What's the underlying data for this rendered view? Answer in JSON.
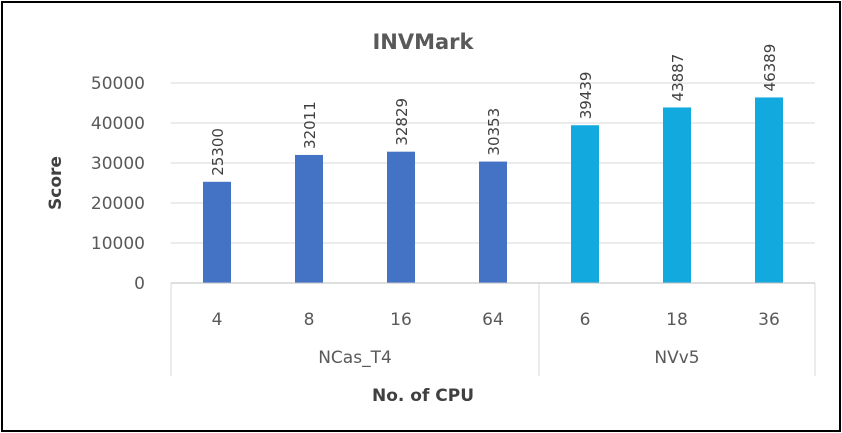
{
  "chart_data": {
    "type": "bar",
    "title": "INVMark",
    "xlabel": "No. of CPU",
    "ylabel": "Score",
    "ylim": [
      0,
      50000
    ],
    "yticks": [
      0,
      10000,
      20000,
      30000,
      40000,
      50000
    ],
    "grid": true,
    "groups": [
      {
        "name": "NCas_T4",
        "color": "#4472C4",
        "categories": [
          "4",
          "8",
          "16",
          "64"
        ],
        "values": [
          25300,
          32011,
          32829,
          30353
        ]
      },
      {
        "name": "NVv5",
        "color": "#11A9DE",
        "categories": [
          "6",
          "18",
          "36"
        ],
        "values": [
          39439,
          43887,
          46389
        ]
      }
    ]
  }
}
